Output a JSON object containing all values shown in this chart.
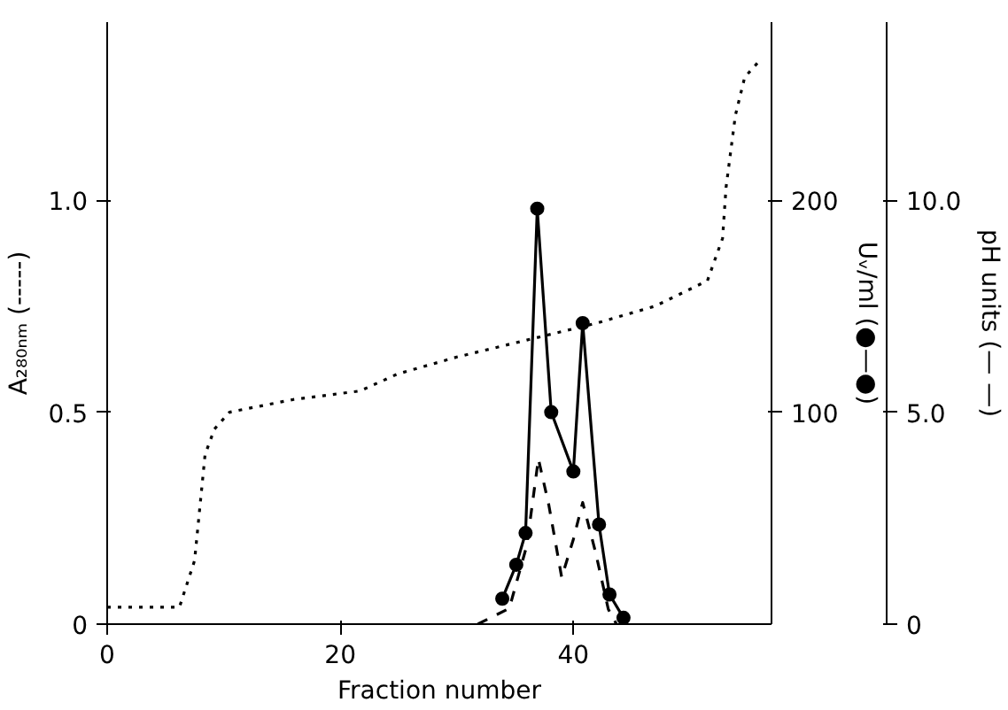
{
  "chart_data": {
    "type": "line",
    "xlabel": "Fraction number",
    "ylabel": "A₂₈₀ₙₘ (-----)",
    "y2label": "Uᵥ/ml (●—●)",
    "y3label": "pH units (— —)",
    "xlim": [
      0,
      57
    ],
    "xticks": [
      0,
      20,
      40
    ],
    "ylim": [
      0,
      1.42
    ],
    "yticks": [
      0,
      0.5,
      {
        "value": 1.0,
        "label": "1.0"
      }
    ],
    "y2lim": [
      0,
      284
    ],
    "y2ticks": [
      100,
      200
    ],
    "y3lim": [
      0,
      14.2
    ],
    "y3ticks": [
      0,
      {
        "value": 5,
        "label": "5.0"
      },
      {
        "value": 10,
        "label": "10.0"
      }
    ],
    "grid": false,
    "series": [
      {
        "color": "#000000",
        "axis": "y",
        "line_style": "dashed",
        "marker": "none",
        "x": [
          31.8,
          34.5,
          36.0,
          37.0,
          37.9,
          39.0,
          40.0,
          40.8,
          41.9,
          43.0,
          43.7
        ],
        "values": [
          0,
          0.037,
          0.185,
          0.39,
          0.28,
          0.11,
          0.2,
          0.287,
          0.17,
          0.035,
          0
        ]
      },
      {
        "color": "#000000",
        "axis": "y2",
        "line_style": "solid",
        "marker": "circle",
        "x": [
          33.9,
          35.1,
          35.9,
          36.9,
          38.1,
          40.0,
          40.8,
          42.2,
          43.1,
          44.3
        ],
        "values": [
          12,
          28,
          43,
          196,
          100,
          72,
          142,
          47,
          14,
          3
        ]
      },
      {
        "color": "#000000",
        "axis": "y3",
        "line_style": "dotted",
        "marker": "none",
        "x": [
          0,
          6.2,
          7.5,
          8.4,
          9.2,
          10.5,
          16,
          21.7,
          24.9,
          30,
          36,
          42,
          47,
          51.5,
          52.8,
          53.1,
          53.9,
          54.7,
          56
        ],
        "values": [
          0.4,
          0.4,
          1.5,
          4.0,
          4.6,
          5.0,
          5.3,
          5.5,
          5.9,
          6.3,
          6.7,
          7.1,
          7.5,
          8.1,
          9.1,
          10.3,
          12.0,
          12.9,
          13.3
        ]
      }
    ]
  }
}
